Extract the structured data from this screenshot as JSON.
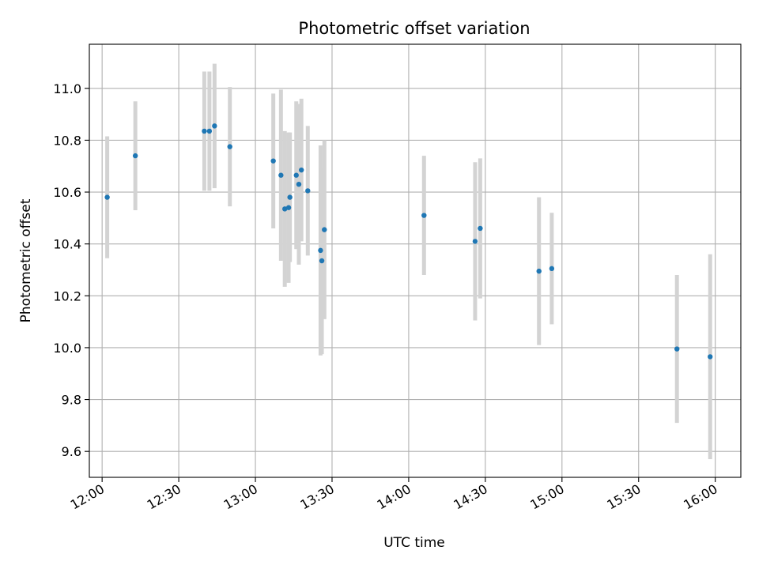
{
  "chart_data": {
    "type": "scatter",
    "title": "Photometric offset variation",
    "xlabel": "UTC time",
    "ylabel": "Photometric offset",
    "x_kind": "time",
    "xlim": [
      "11:55",
      "16:10"
    ],
    "ylim": [
      9.5,
      11.17
    ],
    "xticks": [
      "12:00",
      "12:30",
      "13:00",
      "13:30",
      "14:00",
      "14:30",
      "15:00",
      "15:30",
      "16:00"
    ],
    "yticks": [
      9.6,
      9.8,
      10.0,
      10.2,
      10.4,
      10.6,
      10.8,
      11.0
    ],
    "grid": true,
    "errorbar_color": "#d3d3d3",
    "point_color": "#1f77b4",
    "points": [
      {
        "x": "12:02",
        "y": 10.58,
        "err": 0.235
      },
      {
        "x": "12:13",
        "y": 10.74,
        "err": 0.21
      },
      {
        "x": "12:40",
        "y": 10.835,
        "err": 0.23
      },
      {
        "x": "12:42",
        "y": 10.835,
        "err": 0.23
      },
      {
        "x": "12:44",
        "y": 10.855,
        "err": 0.24
      },
      {
        "x": "12:50",
        "y": 10.775,
        "err": 0.23
      },
      {
        "x": "13:07",
        "y": 10.72,
        "err": 0.26
      },
      {
        "x": "13:10",
        "y": 10.665,
        "err": 0.33
      },
      {
        "x": "13:11.5",
        "y": 10.535,
        "err": 0.3
      },
      {
        "x": "13:13",
        "y": 10.54,
        "err": 0.29
      },
      {
        "x": "13:13.5",
        "y": 10.58,
        "err": 0.25
      },
      {
        "x": "13:16",
        "y": 10.665,
        "err": 0.285
      },
      {
        "x": "13:17",
        "y": 10.63,
        "err": 0.31
      },
      {
        "x": "13:18",
        "y": 10.685,
        "err": 0.275
      },
      {
        "x": "13:20.5",
        "y": 10.605,
        "err": 0.25
      },
      {
        "x": "13:25.5",
        "y": 10.375,
        "err": 0.405
      },
      {
        "x": "13:26",
        "y": 10.335,
        "err": 0.36
      },
      {
        "x": "13:27",
        "y": 10.455,
        "err": 0.345
      },
      {
        "x": "14:06",
        "y": 10.51,
        "err": 0.23
      },
      {
        "x": "14:26",
        "y": 10.41,
        "err": 0.305
      },
      {
        "x": "14:28",
        "y": 10.46,
        "err": 0.27
      },
      {
        "x": "14:51",
        "y": 10.295,
        "err": 0.285
      },
      {
        "x": "14:56",
        "y": 10.305,
        "err": 0.215
      },
      {
        "x": "15:45",
        "y": 9.995,
        "err": 0.285
      },
      {
        "x": "15:58",
        "y": 9.965,
        "err": 0.395
      }
    ]
  }
}
